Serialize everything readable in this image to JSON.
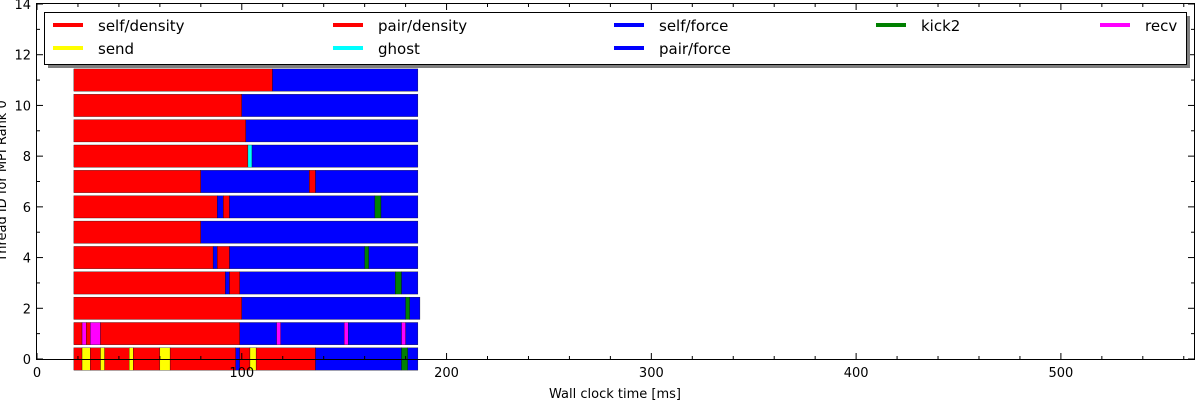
{
  "chart_data": {
    "type": "bar",
    "orientation": "horizontal-timeline",
    "xlabel": "Wall clock time [ms]",
    "ylabel": "Thread ID for MPI Rank 0",
    "xlim": [
      0,
      565
    ],
    "ylim": [
      0,
      14
    ],
    "xticks": [
      "0",
      "100",
      "200",
      "300",
      "400",
      "500"
    ],
    "yticks": [
      "0",
      "2",
      "4",
      "6",
      "8",
      "10",
      "12",
      "14"
    ],
    "grid": false,
    "legend": {
      "placement": "top",
      "columns": 5,
      "entries": [
        {
          "label": "self/density",
          "color": "#ff0000"
        },
        {
          "label": "pair/density",
          "color": "#ff0000"
        },
        {
          "label": "self/force",
          "color": "#0000ff"
        },
        {
          "label": "kick2",
          "color": "#008000"
        },
        {
          "label": "recv",
          "color": "#ff00ff"
        },
        {
          "label": "send",
          "color": "#ffff00"
        },
        {
          "label": "ghost",
          "color": "#00ffff"
        },
        {
          "label": "pair/force",
          "color": "#0000ff"
        }
      ]
    },
    "rows": [
      {
        "thread": 0,
        "segments": [
          [
            18,
            22,
            "#ff0000"
          ],
          [
            22,
            26,
            "#ffff00"
          ],
          [
            26,
            31,
            "#ff0000"
          ],
          [
            31,
            33,
            "#ffff00"
          ],
          [
            33,
            45,
            "#ff0000"
          ],
          [
            45,
            47,
            "#ffff00"
          ],
          [
            47,
            60,
            "#ff0000"
          ],
          [
            60,
            65,
            "#ffff00"
          ],
          [
            65,
            97,
            "#ff0000"
          ],
          [
            97,
            99,
            "#0000ff"
          ],
          [
            99,
            104,
            "#ff0000"
          ],
          [
            104,
            107,
            "#ffff00"
          ],
          [
            107,
            136,
            "#ff0000"
          ],
          [
            136,
            178,
            "#0000ff"
          ],
          [
            178,
            181,
            "#008000"
          ],
          [
            181,
            186,
            "#0000ff"
          ]
        ]
      },
      {
        "thread": 1,
        "segments": [
          [
            18,
            22,
            "#ff0000"
          ],
          [
            22,
            24,
            "#ff00ff"
          ],
          [
            24,
            26,
            "#ff0000"
          ],
          [
            26,
            31,
            "#ff00ff"
          ],
          [
            31,
            99,
            "#ff0000"
          ],
          [
            99,
            117,
            "#0000ff"
          ],
          [
            117,
            119,
            "#ff00ff"
          ],
          [
            119,
            150,
            "#0000ff"
          ],
          [
            150,
            152,
            "#ff00ff"
          ],
          [
            152,
            178,
            "#0000ff"
          ],
          [
            178,
            180,
            "#ff00ff"
          ],
          [
            180,
            186,
            "#0000ff"
          ]
        ]
      },
      {
        "thread": 2,
        "segments": [
          [
            18,
            100,
            "#ff0000"
          ],
          [
            100,
            180,
            "#0000ff"
          ],
          [
            180,
            182,
            "#008000"
          ],
          [
            182,
            187,
            "#0000ff"
          ]
        ]
      },
      {
        "thread": 3,
        "segments": [
          [
            18,
            92,
            "#ff0000"
          ],
          [
            92,
            94,
            "#0000ff"
          ],
          [
            94,
            99,
            "#ff0000"
          ],
          [
            99,
            175,
            "#0000ff"
          ],
          [
            175,
            178,
            "#008000"
          ],
          [
            178,
            186,
            "#0000ff"
          ]
        ]
      },
      {
        "thread": 4,
        "segments": [
          [
            18,
            86,
            "#ff0000"
          ],
          [
            86,
            88,
            "#0000ff"
          ],
          [
            88,
            94,
            "#ff0000"
          ],
          [
            94,
            160,
            "#0000ff"
          ],
          [
            160,
            162,
            "#008000"
          ],
          [
            162,
            186,
            "#0000ff"
          ]
        ]
      },
      {
        "thread": 5,
        "segments": [
          [
            18,
            80,
            "#ff0000"
          ],
          [
            80,
            186,
            "#0000ff"
          ]
        ]
      },
      {
        "thread": 6,
        "segments": [
          [
            18,
            88,
            "#ff0000"
          ],
          [
            88,
            91,
            "#0000ff"
          ],
          [
            91,
            94,
            "#ff0000"
          ],
          [
            94,
            165,
            "#0000ff"
          ],
          [
            165,
            168,
            "#008000"
          ],
          [
            168,
            186,
            "#0000ff"
          ]
        ]
      },
      {
        "thread": 7,
        "segments": [
          [
            18,
            80,
            "#ff0000"
          ],
          [
            80,
            133,
            "#0000ff"
          ],
          [
            133,
            136,
            "#ff0000"
          ],
          [
            136,
            186,
            "#0000ff"
          ]
        ]
      },
      {
        "thread": 8,
        "segments": [
          [
            18,
            103,
            "#ff0000"
          ],
          [
            103,
            105,
            "#00ffff"
          ],
          [
            105,
            186,
            "#0000ff"
          ]
        ]
      },
      {
        "thread": 9,
        "segments": [
          [
            18,
            102,
            "#ff0000"
          ],
          [
            102,
            186,
            "#0000ff"
          ]
        ]
      },
      {
        "thread": 10,
        "segments": [
          [
            18,
            100,
            "#ff0000"
          ],
          [
            100,
            186,
            "#0000ff"
          ]
        ]
      },
      {
        "thread": 11,
        "segments": [
          [
            18,
            115,
            "#ff0000"
          ],
          [
            115,
            186,
            "#0000ff"
          ]
        ]
      }
    ]
  }
}
